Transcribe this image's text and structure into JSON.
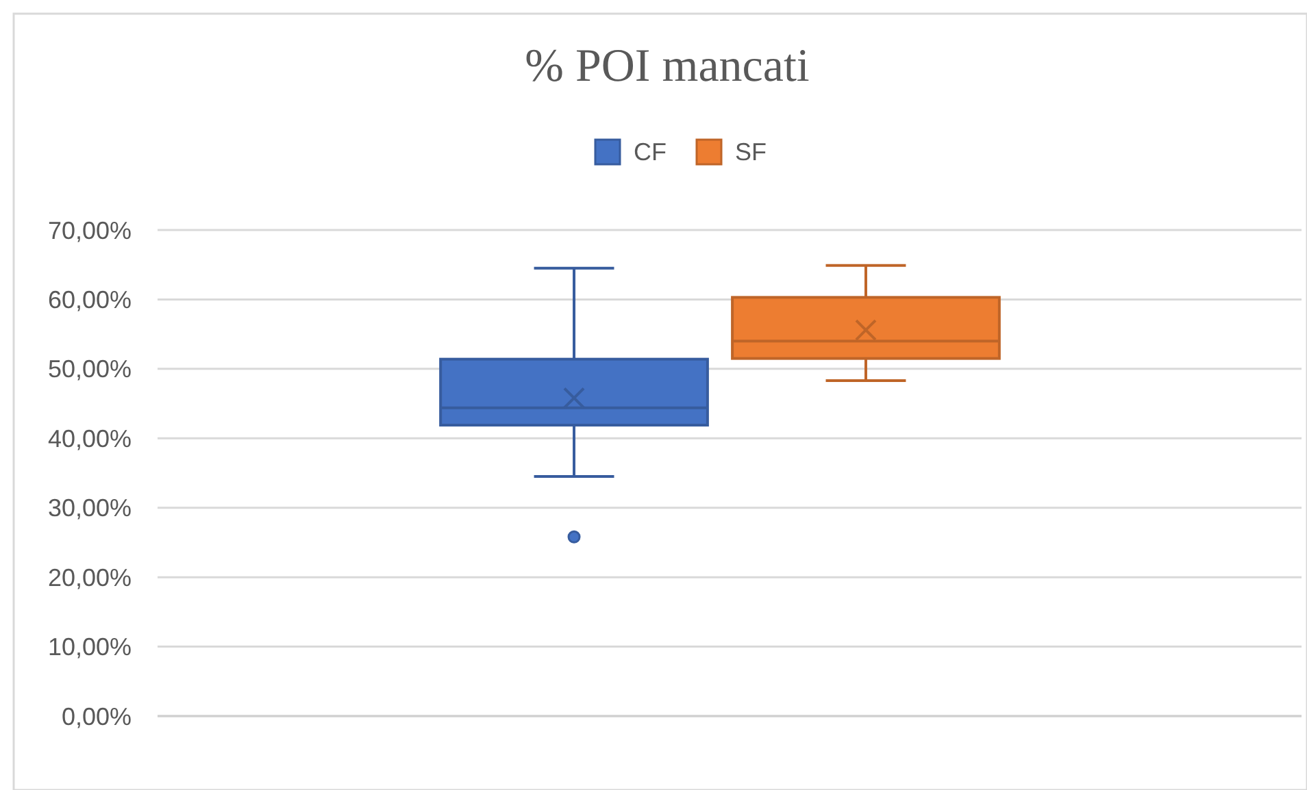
{
  "chart_data": {
    "type": "box",
    "title": "% POI mancati",
    "categories": [
      null
    ],
    "series": [
      {
        "name": "CF",
        "color": "#4472c4",
        "boxes": [
          {
            "low": 34.5,
            "q1": 41.9,
            "median": 44.4,
            "q3": 51.4,
            "high": 64.5,
            "mean": 45.8,
            "outliers": [
              25.8
            ]
          }
        ]
      },
      {
        "name": "SF",
        "color": "#ed7d31",
        "boxes": [
          {
            "low": 48.3,
            "q1": 51.5,
            "median": 54.0,
            "q3": 60.3,
            "high": 64.9,
            "mean": 55.6
          }
        ]
      }
    ],
    "ylim": [
      0,
      70
    ],
    "yticks": [
      {
        "value": 0,
        "label": "0,00%"
      },
      {
        "value": 10,
        "label": "10,00%"
      },
      {
        "value": 20,
        "label": "20,00%"
      },
      {
        "value": 30,
        "label": "30,00%"
      },
      {
        "value": 40,
        "label": "40,00%"
      },
      {
        "value": 50,
        "label": "50,00%"
      },
      {
        "value": 60,
        "label": "60,00%"
      },
      {
        "value": 70,
        "label": "70,00%"
      }
    ],
    "grid": "y",
    "legend": "top",
    "tick_labels": "y"
  }
}
